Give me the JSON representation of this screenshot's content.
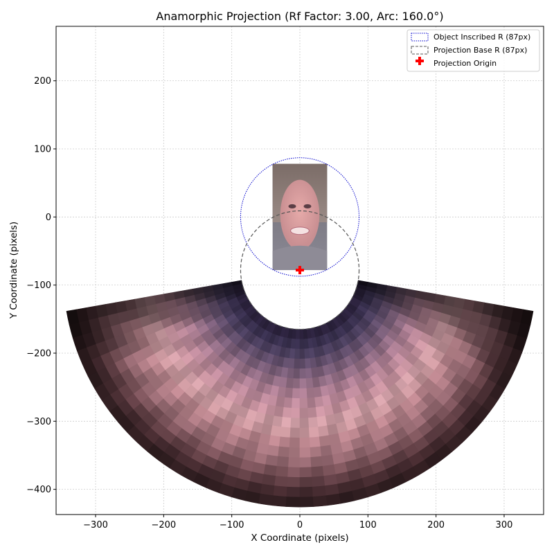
{
  "chart_data": {
    "type": "scatter",
    "title": "Anamorphic Projection (Rf Factor: 3.00, Arc: 160.0°)",
    "xlabel": "X Coordinate (pixels)",
    "ylabel": "Y Coordinate (pixels)",
    "xlim": [
      -358,
      358
    ],
    "ylim": [
      -437,
      280
    ],
    "xticks": [
      -300,
      -200,
      -100,
      0,
      100,
      200,
      300
    ],
    "yticks": [
      -400,
      -300,
      -200,
      -100,
      0,
      100,
      200
    ],
    "xtick_labels": [
      "−300",
      "−200",
      "−100",
      "0",
      "100",
      "200",
      "300"
    ],
    "ytick_labels": [
      "−400",
      "−300",
      "−200",
      "−100",
      "0",
      "100",
      "200"
    ],
    "grid": true,
    "legend_position": "top-right",
    "legend": [
      {
        "label": "Object Inscribed R (87px)",
        "style": "dotted-circle",
        "color": "#0000cc"
      },
      {
        "label": "Projection Base R (87px)",
        "style": "dashed-circle",
        "color": "#555555"
      },
      {
        "label": "Projection Origin",
        "style": "plus-marker",
        "color": "#ff0000"
      }
    ],
    "object_image": {
      "x_range": [
        -40,
        40
      ],
      "y_range": [
        -78,
        78
      ]
    },
    "object_inscribed_circle": {
      "center": [
        0,
        0
      ],
      "radius": 87
    },
    "projection_base_circle": {
      "center": [
        0,
        -78
      ],
      "radius": 87
    },
    "projection_origin": {
      "x": 0,
      "y": -78
    },
    "anamorphic_projection": {
      "center": [
        0,
        -78
      ],
      "inner_radius": 87,
      "outer_radius": 348,
      "arc_degrees": 160,
      "start_angle_deg": 190,
      "end_angle_deg": 350
    },
    "colors": {
      "blue_circle": "#0000cc",
      "gray_circle": "#555555",
      "origin_marker": "#ff0000",
      "grid": "#cccccc"
    }
  }
}
